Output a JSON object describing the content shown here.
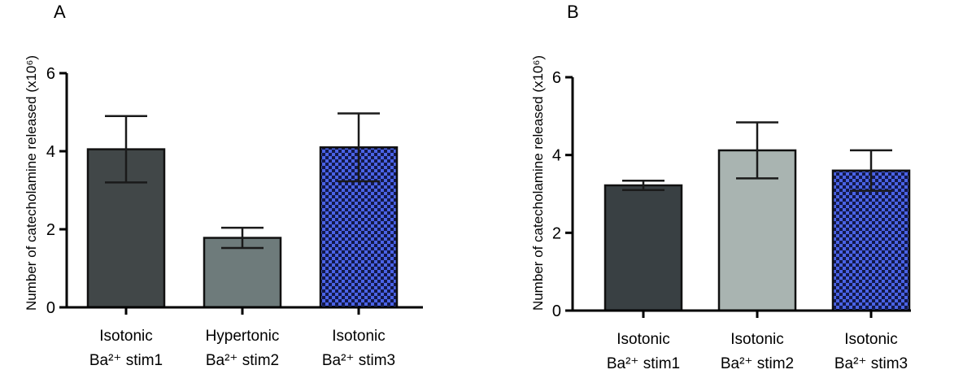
{
  "chart_data": [
    {
      "type": "bar",
      "panel": "A",
      "ylabel": "Number of catecholamine released (x10⁶)",
      "ylim": [
        0,
        6
      ],
      "yticks": [
        0,
        2,
        4,
        6
      ],
      "yticks_text": [
        "0",
        "2",
        "4",
        "6"
      ],
      "categories": [
        "Isotonic\nBa²⁺ stim1",
        "Hypertonic\nBa²⁺ stim2",
        "Isotonic\nBa²⁺ stim3"
      ],
      "category_lines": [
        [
          "Isotonic",
          "Ba²⁺ stim1"
        ],
        [
          "Hypertonic",
          "Ba²⁺ stim2"
        ],
        [
          "Isotonic",
          "Ba²⁺ stim3"
        ]
      ],
      "values": [
        4.05,
        1.78,
        4.1
      ],
      "errors": [
        0.85,
        0.26,
        0.87
      ],
      "colors": [
        "#414748",
        "#6e7b7b",
        "checker-blue"
      ]
    },
    {
      "type": "bar",
      "panel": "B",
      "ylabel": "Number of catecholamine released (x10⁶)",
      "ylim": [
        0,
        6
      ],
      "yticks": [
        0,
        2,
        4,
        6
      ],
      "yticks_text": [
        "0",
        "2",
        "4",
        "6"
      ],
      "categories": [
        "Isotonic\nBa²⁺ stim1",
        "Isotonic\nBa²⁺ stim2",
        "Isotonic\nBa²⁺ stim3"
      ],
      "category_lines": [
        [
          "Isotonic",
          "Ba²⁺ stim1"
        ],
        [
          "Isotonic",
          "Ba²⁺ stim2"
        ],
        [
          "Isotonic",
          "Ba²⁺ stim3"
        ]
      ],
      "values": [
        3.22,
        4.12,
        3.6
      ],
      "errors": [
        0.12,
        0.72,
        0.52
      ],
      "colors": [
        "#394043",
        "#a9b4b1",
        "checker-blue"
      ]
    }
  ],
  "colors": {
    "checker_dark": "#13194a",
    "checker_light": "#4a63e6",
    "axis": "#000000"
  }
}
